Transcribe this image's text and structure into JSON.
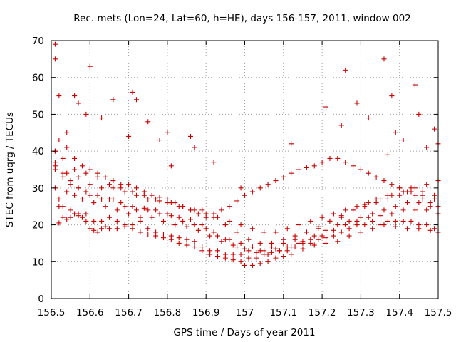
{
  "chart_data": {
    "type": "scatter",
    "title": "Rec. mets (Lon=24, Lat=60, h=HE), days 156-157, 2011, window 002",
    "xlabel": "GPS time / Days of year 2011",
    "ylabel": "STEC from uqrg / TECUs",
    "xlim": [
      156.5,
      157.5
    ],
    "ylim": [
      0,
      70
    ],
    "xticks": [
      "156.5",
      "156.6",
      "156.7",
      "156.8",
      "156.9",
      "157",
      "157.1",
      "157.2",
      "157.3",
      "157.4",
      "157.5"
    ],
    "yticks": [
      "0",
      "10",
      "20",
      "30",
      "40",
      "50",
      "60",
      "70"
    ],
    "grid": true,
    "marker": "+",
    "series": [
      {
        "color": "#cc0000",
        "x": [
          156.51,
          156.51,
          156.52,
          156.53,
          156.54,
          156.55,
          156.56,
          156.57,
          156.58,
          156.59,
          156.6,
          156.61,
          156.62,
          156.63,
          156.64,
          156.65,
          156.67,
          156.69,
          156.71,
          156.73,
          156.75,
          156.77,
          156.79,
          156.81,
          156.83,
          156.85,
          156.87,
          156.89,
          156.91,
          156.93,
          156.95,
          156.97,
          156.99,
          157.0,
          157.02,
          157.04,
          157.06,
          157.08,
          157.1,
          157.12,
          157.15,
          157.18,
          157.21,
          157.24,
          157.27,
          157.3,
          157.33,
          157.36,
          157.39,
          157.42,
          157.45,
          157.48,
          157.5,
          156.51,
          156.52,
          156.53,
          156.55,
          156.57,
          156.59,
          156.61,
          156.63,
          156.65,
          156.67,
          156.69,
          156.71,
          156.73,
          156.75,
          156.77,
          156.79,
          156.81,
          156.83,
          156.85,
          156.87,
          156.89,
          156.91,
          156.93,
          156.95,
          156.97,
          156.99,
          157.01,
          157.03,
          157.05,
          157.07,
          157.09,
          157.11,
          157.13,
          157.15,
          157.17,
          157.19,
          157.21,
          157.23,
          157.25,
          157.27,
          157.29,
          157.31,
          157.33,
          157.35,
          157.37,
          157.39,
          157.41,
          157.43,
          157.45,
          157.47,
          157.49,
          156.51,
          156.53,
          156.55,
          156.57,
          156.6,
          156.63,
          156.66,
          156.69,
          156.72,
          156.75,
          156.78,
          156.81,
          156.84,
          156.87,
          156.9,
          156.93,
          156.96,
          156.99,
          157.02,
          157.05,
          157.08,
          157.11,
          157.14,
          157.17,
          157.2,
          157.23,
          157.26,
          157.29,
          157.32,
          157.35,
          157.38,
          157.41,
          157.44,
          157.47,
          157.5,
          156.51,
          156.53,
          156.56,
          156.59,
          156.62,
          156.65,
          156.68,
          156.71,
          156.74,
          156.77,
          156.8,
          156.83,
          156.86,
          156.89,
          156.92,
          156.95,
          156.98,
          157.01,
          157.04,
          157.07,
          157.1,
          157.13,
          157.16,
          157.19,
          157.22,
          157.25,
          157.28,
          157.31,
          157.34,
          157.37,
          157.4,
          157.43,
          157.46,
          157.49,
          156.52,
          156.54,
          156.56,
          156.58,
          156.61,
          156.64,
          156.67,
          156.7,
          156.73,
          156.76,
          156.79,
          156.82,
          156.85,
          156.88,
          156.91,
          156.94,
          156.97,
          157.0,
          157.03,
          157.06,
          157.09,
          157.12,
          157.15,
          157.18,
          157.21,
          157.24,
          157.27,
          157.3,
          157.33,
          157.36,
          157.39,
          157.42,
          157.45,
          157.48,
          156.51,
          156.53,
          156.55,
          156.57,
          156.59,
          156.62,
          156.65,
          156.68,
          156.71,
          156.74,
          156.77,
          156.8,
          156.83,
          156.86,
          156.89,
          156.92,
          156.95,
          156.98,
          157.01,
          157.04,
          157.07,
          157.1,
          157.13,
          157.16,
          157.19,
          157.22,
          157.25,
          157.28,
          157.31,
          157.34,
          157.37,
          157.4,
          157.43,
          157.46,
          157.49,
          156.52,
          156.54,
          156.56,
          156.58,
          156.6,
          156.62,
          156.64,
          156.66,
          156.68,
          156.7,
          156.72,
          156.74,
          156.76,
          156.78,
          156.8,
          156.82,
          156.84,
          156.86,
          156.88,
          156.9,
          156.92,
          156.94,
          156.96,
          156.98,
          157.0,
          157.02,
          157.04,
          157.06,
          157.08,
          157.1,
          157.12,
          157.14,
          157.16,
          157.18,
          157.2,
          157.22,
          157.24,
          157.26,
          157.28,
          157.3,
          157.32,
          157.34,
          157.36,
          157.38,
          157.4,
          157.42,
          157.44,
          157.46,
          157.48,
          157.5,
          156.51,
          156.54,
          156.57,
          156.6,
          156.63,
          156.66,
          156.69,
          156.72,
          156.75,
          156.78,
          156.81,
          156.84,
          156.87,
          156.9,
          156.93,
          156.96,
          156.99,
          157.02,
          157.05,
          157.08,
          157.11,
          157.14,
          157.17,
          157.2,
          157.23,
          157.26,
          157.29,
          157.32,
          157.35,
          157.38,
          157.41,
          157.44,
          157.47,
          157.5,
          156.51,
          156.52,
          156.54,
          156.56,
          156.57,
          156.59,
          156.6,
          156.63,
          156.66,
          156.7,
          156.71,
          156.72,
          156.75,
          156.78,
          156.8,
          156.81,
          156.86,
          156.87,
          156.92,
          156.99,
          157.12,
          157.21,
          157.25,
          157.26,
          157.29,
          157.32,
          157.36,
          157.37,
          157.38,
          157.39,
          157.41,
          157.44,
          157.45,
          157.47,
          157.49,
          157.5
        ],
        "y": [
          69,
          40,
          20.5,
          22,
          21.5,
          22,
          23,
          23,
          22,
          21,
          19,
          18.5,
          18,
          19,
          19.5,
          19,
          19,
          19.5,
          19,
          18,
          17.5,
          17,
          16.5,
          16,
          15,
          14.5,
          14,
          13,
          12,
          11.5,
          11,
          10.5,
          10,
          9,
          9,
          9.5,
          10,
          11,
          11.5,
          12,
          13.5,
          14.5,
          15,
          15.5,
          17,
          18,
          19,
          20,
          19.5,
          19,
          19,
          18.5,
          18,
          30,
          25,
          25,
          24,
          22.5,
          23,
          21,
          21,
          22,
          21,
          20,
          20,
          21,
          19,
          18,
          17.5,
          17,
          16.5,
          16,
          15.5,
          14,
          13,
          13,
          12,
          12,
          12,
          11,
          11,
          12,
          12.5,
          13,
          13,
          14,
          15,
          15,
          16,
          16.5,
          17,
          18,
          19,
          20,
          20,
          21,
          20,
          21,
          21,
          21,
          21,
          20,
          20,
          19,
          36,
          34,
          31,
          30,
          28,
          27,
          27,
          25,
          24,
          24,
          23,
          22.5,
          21,
          20,
          19,
          17,
          16,
          15,
          14,
          13,
          13.5,
          14,
          15,
          16,
          17,
          18.5,
          20,
          21,
          22,
          22.5,
          23,
          24,
          24,
          24,
          23,
          40,
          38,
          35,
          34,
          33,
          31,
          30,
          29,
          28,
          27,
          26,
          25,
          24,
          24,
          22,
          20,
          18,
          16,
          15,
          15,
          16,
          17,
          18,
          19,
          21,
          22,
          24,
          25,
          26,
          27,
          28,
          29,
          28,
          27,
          27,
          29,
          28,
          27,
          26,
          25,
          24,
          23,
          22,
          22,
          21,
          20,
          19.5,
          18.5,
          17,
          15.5,
          14.5,
          13.5,
          12.5,
          12,
          13,
          14,
          15.5,
          17,
          18.5,
          20,
          21,
          22,
          23,
          24,
          25,
          26,
          26,
          25,
          35,
          33,
          32,
          30,
          29,
          28,
          27,
          26,
          25,
          24.5,
          24,
          23,
          22,
          21.5,
          20,
          18,
          16,
          14,
          13,
          13,
          14,
          15,
          16,
          18,
          19.5,
          21,
          22.5,
          24,
          25.5,
          27,
          28,
          30,
          30,
          29,
          28,
          43,
          41,
          38,
          36,
          35,
          34,
          33,
          32,
          31,
          31,
          30,
          29,
          28,
          27.5,
          27,
          26,
          25,
          24,
          23,
          22,
          23,
          24,
          25,
          26.5,
          28,
          29,
          30,
          31,
          32,
          33,
          34,
          35,
          35.5,
          36,
          37,
          38,
          38,
          37,
          36,
          35,
          34,
          33,
          32,
          31,
          30,
          29,
          28,
          27,
          26,
          25,
          37,
          34,
          33,
          31,
          30,
          30,
          29,
          28,
          27,
          26.5,
          26,
          25,
          24,
          23,
          22,
          21,
          20,
          19,
          18,
          18,
          19,
          20,
          21,
          22,
          23,
          24,
          25,
          26,
          27,
          28,
          29,
          30,
          31,
          32,
          65,
          55,
          45,
          55,
          53,
          50,
          63,
          49,
          54,
          44,
          56,
          54,
          48,
          43,
          45,
          36,
          44,
          41,
          37,
          30,
          42,
          52,
          47,
          62,
          53,
          49,
          65,
          39,
          55,
          45,
          43,
          58,
          50,
          41,
          46,
          42
        ]
      }
    ]
  }
}
